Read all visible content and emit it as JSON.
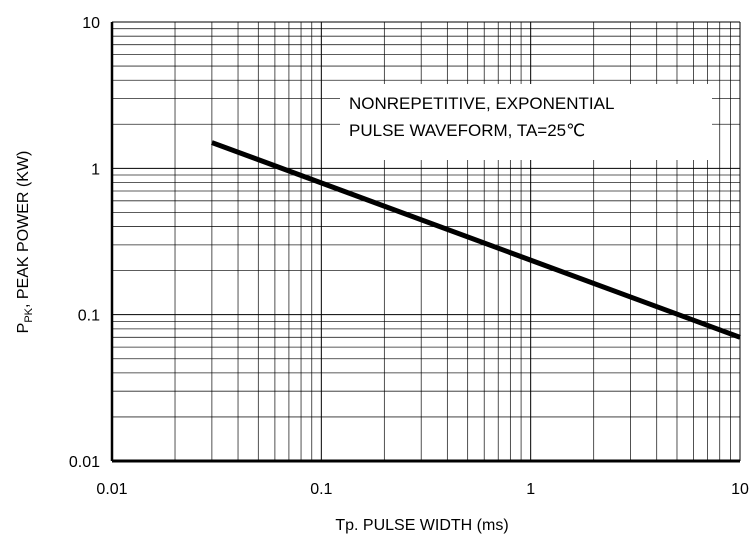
{
  "chart_data": {
    "type": "line",
    "xscale": "log",
    "yscale": "log",
    "xlim": [
      0.01,
      10
    ],
    "ylim": [
      0.01,
      10
    ],
    "grid": true,
    "xlabel": "Tp. PULSE WIDTH (ms)",
    "ylabel": {
      "main": "P",
      "subscript": "PK",
      "rest": ", PEAK POWER (KW)"
    },
    "x_tick_labels": [
      "0.01",
      "0.1",
      "1",
      "10"
    ],
    "y_tick_labels": [
      "0.01",
      "0.1",
      "1",
      "10"
    ],
    "annotation": {
      "line1": "NONREPETITIVE, EXPONENTIAL",
      "line2": "PULSE WAVEFORM, TA=25℃"
    },
    "series": [
      {
        "x": [
          0.03,
          10
        ],
        "y": [
          1.5,
          0.07
        ]
      }
    ]
  }
}
